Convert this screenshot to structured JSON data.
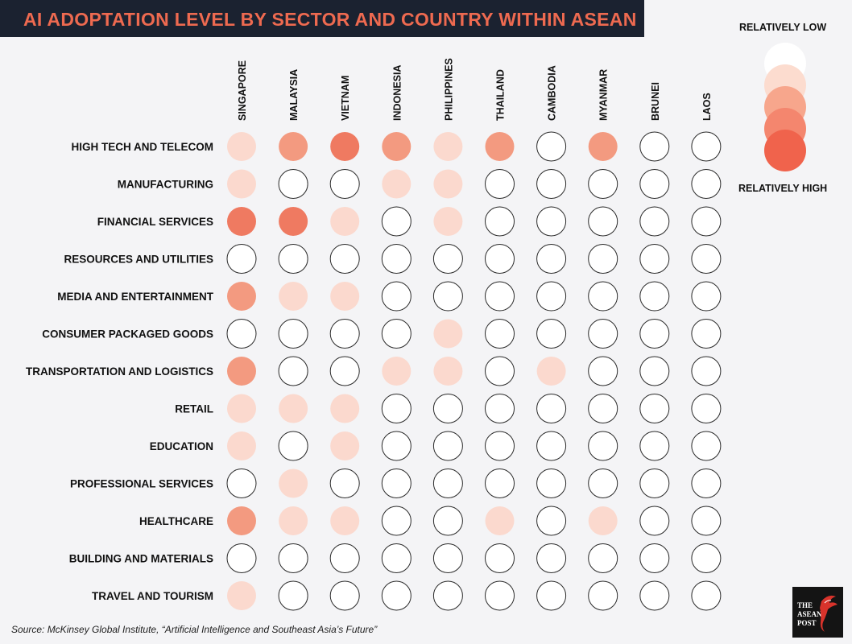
{
  "chart_data": {
    "type": "heatmap",
    "title": "AI  ADOPTATION LEVEL BY SECTOR AND COUNTRY WITHIN ASEAN",
    "countries": [
      "SINGAPORE",
      "MALAYSIA",
      "VIETNAM",
      "INDONESIA",
      "PHILIPPINES",
      "THAILAND",
      "CAMBODIA",
      "MYANMAR",
      "BRUNEI",
      "LAOS"
    ],
    "sectors": [
      "HIGH TECH AND TELECOM",
      "MANUFACTURING",
      "FINANCIAL SERVICES",
      "RESOURCES AND UTILITIES",
      "MEDIA AND ENTERTAINMENT",
      "CONSUMER PACKAGED GOODS",
      "TRANSPORTATION AND LOGISTICS",
      "RETAIL",
      "EDUCATION",
      "PROFESSIONAL SERVICES",
      "HEALTHCARE",
      "BUILDING AND MATERIALS",
      "TRAVEL AND TOURISM"
    ],
    "levels": [
      [
        1,
        2,
        3,
        2,
        1,
        2,
        0,
        2,
        0,
        0
      ],
      [
        1,
        0,
        0,
        1,
        1,
        0,
        0,
        0,
        0,
        0
      ],
      [
        3,
        3,
        1,
        0,
        1,
        0,
        0,
        0,
        0,
        0
      ],
      [
        0,
        0,
        0,
        0,
        0,
        0,
        0,
        0,
        0,
        0
      ],
      [
        2,
        1,
        1,
        0,
        0,
        0,
        0,
        0,
        0,
        0
      ],
      [
        0,
        0,
        0,
        0,
        1,
        0,
        0,
        0,
        0,
        0
      ],
      [
        2,
        0,
        0,
        1,
        1,
        0,
        1,
        0,
        0,
        0
      ],
      [
        1,
        1,
        1,
        0,
        0,
        0,
        0,
        0,
        0,
        0
      ],
      [
        1,
        0,
        1,
        0,
        0,
        0,
        0,
        0,
        0,
        0
      ],
      [
        0,
        1,
        0,
        0,
        0,
        0,
        0,
        0,
        0,
        0
      ],
      [
        2,
        1,
        1,
        0,
        0,
        1,
        0,
        1,
        0,
        0
      ],
      [
        0,
        0,
        0,
        0,
        0,
        0,
        0,
        0,
        0,
        0
      ],
      [
        1,
        0,
        0,
        0,
        0,
        0,
        0,
        0,
        0,
        0
      ]
    ],
    "level_colors": [
      "#ffffff",
      "#fbd9ce",
      "#f39a80",
      "#ef7a61"
    ],
    "legend": {
      "low_label": "RELATIVELY LOW",
      "high_label": "RELATIVELY HIGH",
      "colors": [
        "#ffffff",
        "#fcdccf",
        "#f7a68c",
        "#f4866e",
        "#f0634c"
      ]
    },
    "source": "Source: McKinsey Global Institute, “Artificial Intelligence and Southeast Asia’s Future”"
  },
  "logo": {
    "lines": [
      "THE",
      "ASEAN",
      "POST"
    ]
  }
}
